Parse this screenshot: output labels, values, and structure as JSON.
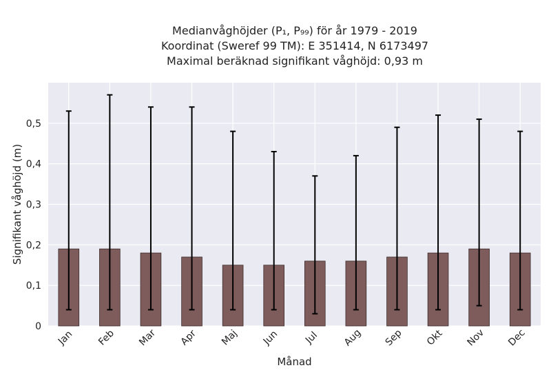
{
  "title_lines": [
    "Medianvåghöjder (P₁, P₉₉) för år 1979 - 2019",
    "Koordinat (Sweref 99 TM): E 351414, N 6173497",
    "Maximal beräknad signifikant våghöjd: 0,93 m"
  ],
  "chart_data": {
    "type": "bar",
    "title": "Medianvåghöjder (P₁, P₉₉) för år 1979 - 2019",
    "xlabel": "Månad",
    "ylabel": "Signifikant våghöjd (m)",
    "categories": [
      "Jan",
      "Feb",
      "Mar",
      "Apr",
      "Maj",
      "Jun",
      "Jul",
      "Aug",
      "Sep",
      "Okt",
      "Nov",
      "Dec"
    ],
    "values": [
      0.19,
      0.19,
      0.18,
      0.17,
      0.15,
      0.15,
      0.16,
      0.16,
      0.17,
      0.18,
      0.19,
      0.18
    ],
    "error_low": [
      0.04,
      0.04,
      0.04,
      0.04,
      0.04,
      0.04,
      0.03,
      0.04,
      0.04,
      0.04,
      0.05,
      0.04
    ],
    "error_high": [
      0.53,
      0.57,
      0.54,
      0.54,
      0.48,
      0.43,
      0.37,
      0.42,
      0.49,
      0.52,
      0.51,
      0.48
    ],
    "ylim": [
      0,
      0.6
    ],
    "yticks": [
      0,
      0.1,
      0.2,
      0.3,
      0.4,
      0.5
    ],
    "ytick_labels": [
      "0",
      "0,1",
      "0,2",
      "0,3",
      "0,4",
      "0,5"
    ],
    "grid": true,
    "colors": {
      "bar": "#7e5c5c",
      "bar_edge": "#3d2b2b",
      "error": "#000000",
      "plot_bg": "#eaeaf2",
      "grid": "#ffffff"
    }
  }
}
